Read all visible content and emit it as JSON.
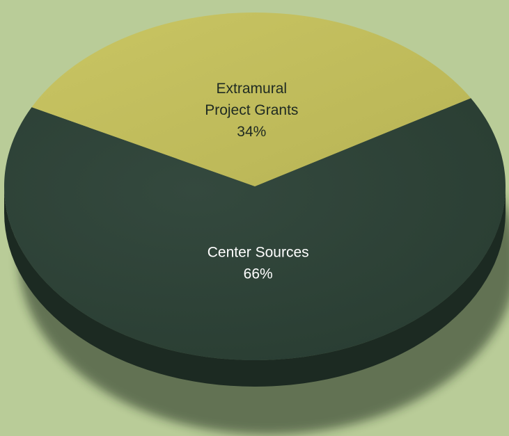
{
  "chart_data": {
    "type": "pie",
    "title": "",
    "slices": [
      {
        "label_lines": [
          "Center Sources"
        ],
        "value": 66,
        "display_value": "66%",
        "color": "#2d4237",
        "side_color": "#1c2a22",
        "label_color": "#ffffff"
      },
      {
        "label_lines": [
          "Extramural",
          "Project Grants"
        ],
        "value": 34,
        "display_value": "34%",
        "color": "#c2bf5c",
        "side_color": "#5e5a2a",
        "label_color": "#1f2a22"
      }
    ],
    "legend": "none",
    "style": "3d-tilted"
  },
  "colors": {
    "background": "#b9cc98",
    "shadow": "#1e2a1f"
  }
}
